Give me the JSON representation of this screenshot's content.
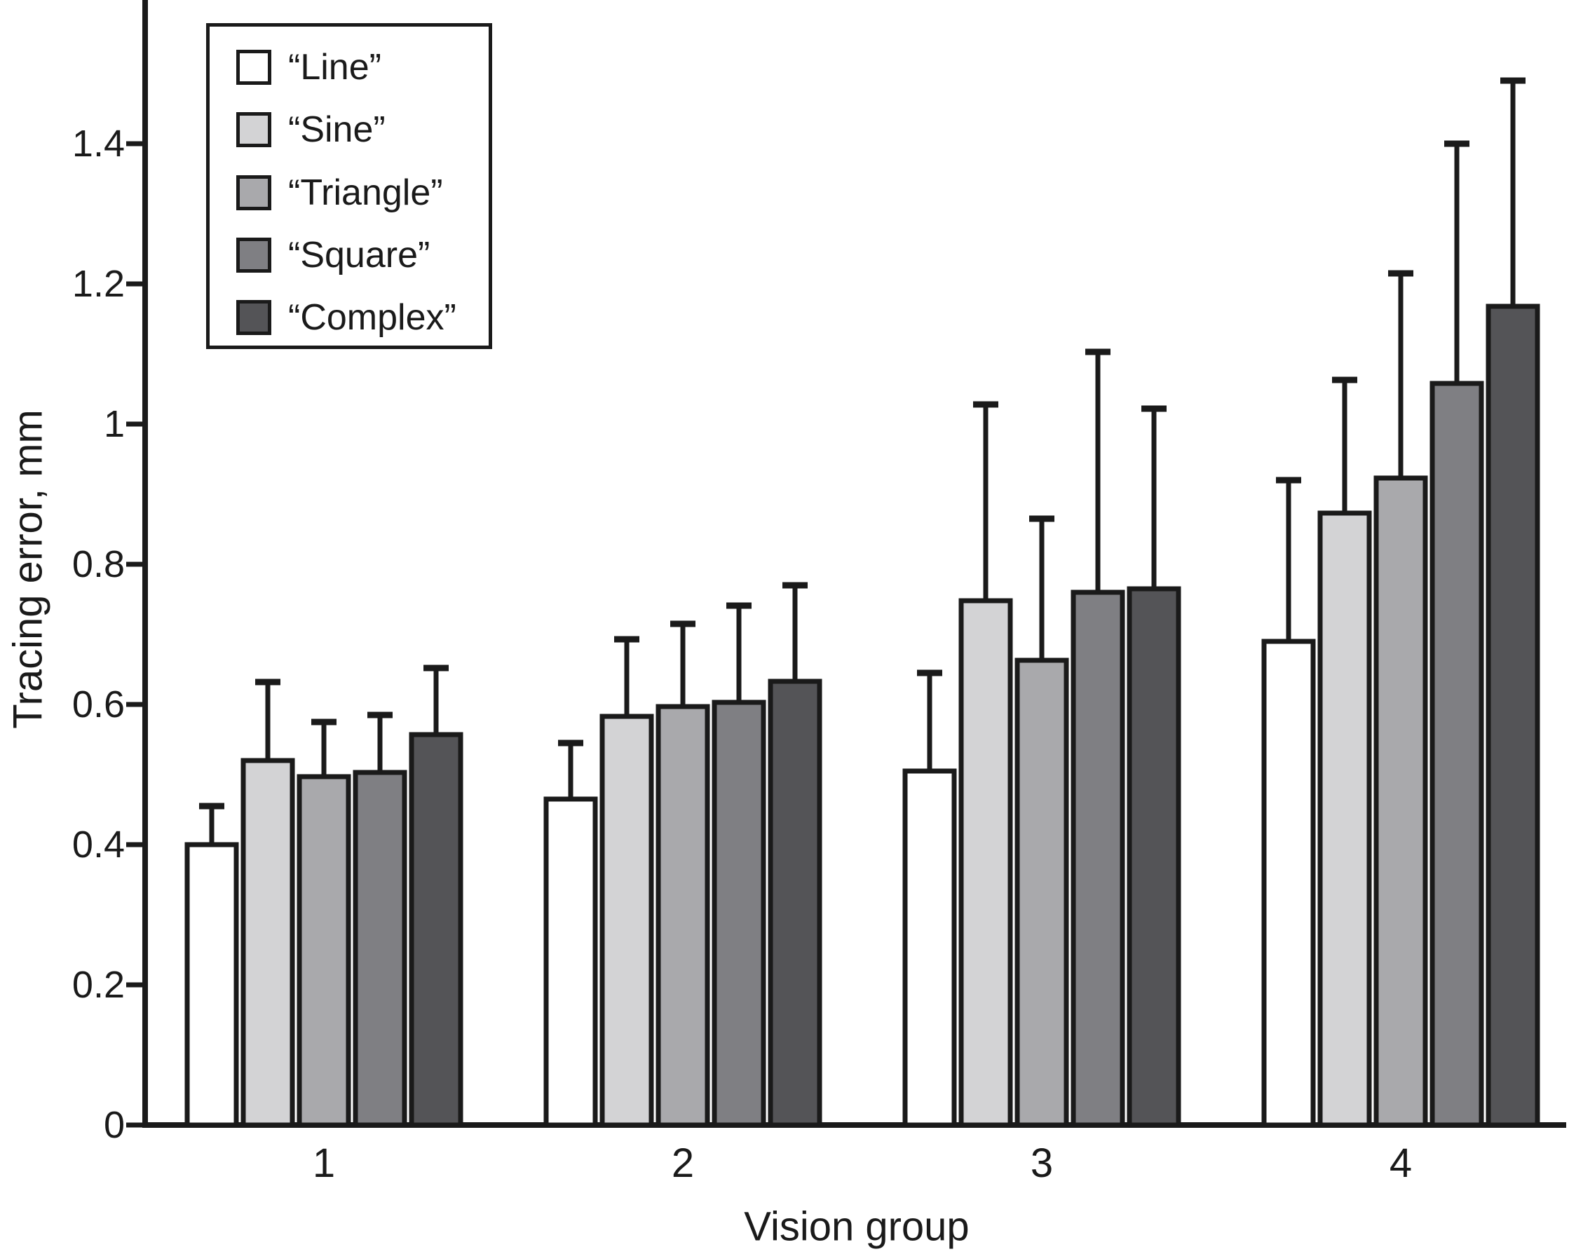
{
  "figure": {
    "background": "#ffffff",
    "ink_color": "#1a1a1a"
  },
  "chart_data": {
    "type": "bar",
    "title": "",
    "xlabel": "Vision group",
    "ylabel": "Tracing error, mm",
    "categories": [
      "1",
      "2",
      "3",
      "4"
    ],
    "series": [
      {
        "name": "“Line”",
        "color": "#ffffff",
        "values": [
          0.4,
          0.465,
          0.505,
          0.69
        ],
        "errors_plus": [
          0.055,
          0.08,
          0.14,
          0.23
        ]
      },
      {
        "name": "“Sine”",
        "color": "#d3d3d5",
        "values": [
          0.52,
          0.583,
          0.748,
          0.873
        ],
        "errors_plus": [
          0.112,
          0.11,
          0.28,
          0.19
        ]
      },
      {
        "name": "“Triangle”",
        "color": "#a9a9ac",
        "values": [
          0.497,
          0.597,
          0.663,
          0.923
        ],
        "errors_plus": [
          0.078,
          0.118,
          0.202,
          0.292
        ]
      },
      {
        "name": "“Square”",
        "color": "#7f7f83",
        "values": [
          0.503,
          0.603,
          0.76,
          1.058
        ],
        "errors_plus": [
          0.082,
          0.138,
          0.343,
          0.342
        ]
      },
      {
        "name": "“Complex”",
        "color": "#545457",
        "values": [
          0.557,
          0.633,
          0.765,
          1.168
        ],
        "errors_plus": [
          0.095,
          0.137,
          0.257,
          0.322
        ]
      }
    ],
    "y_ticks": [
      0,
      0.2,
      0.4,
      0.6,
      0.8,
      1,
      1.2,
      1.4
    ],
    "y_tick_labels": [
      "0",
      "0.2",
      "0.4",
      "0.6",
      "0.8",
      "1",
      "1.2",
      "1.4"
    ],
    "ylim": [
      0,
      1.58
    ],
    "grid": false,
    "error_bars": "upper",
    "legend_position": "top-left"
  }
}
